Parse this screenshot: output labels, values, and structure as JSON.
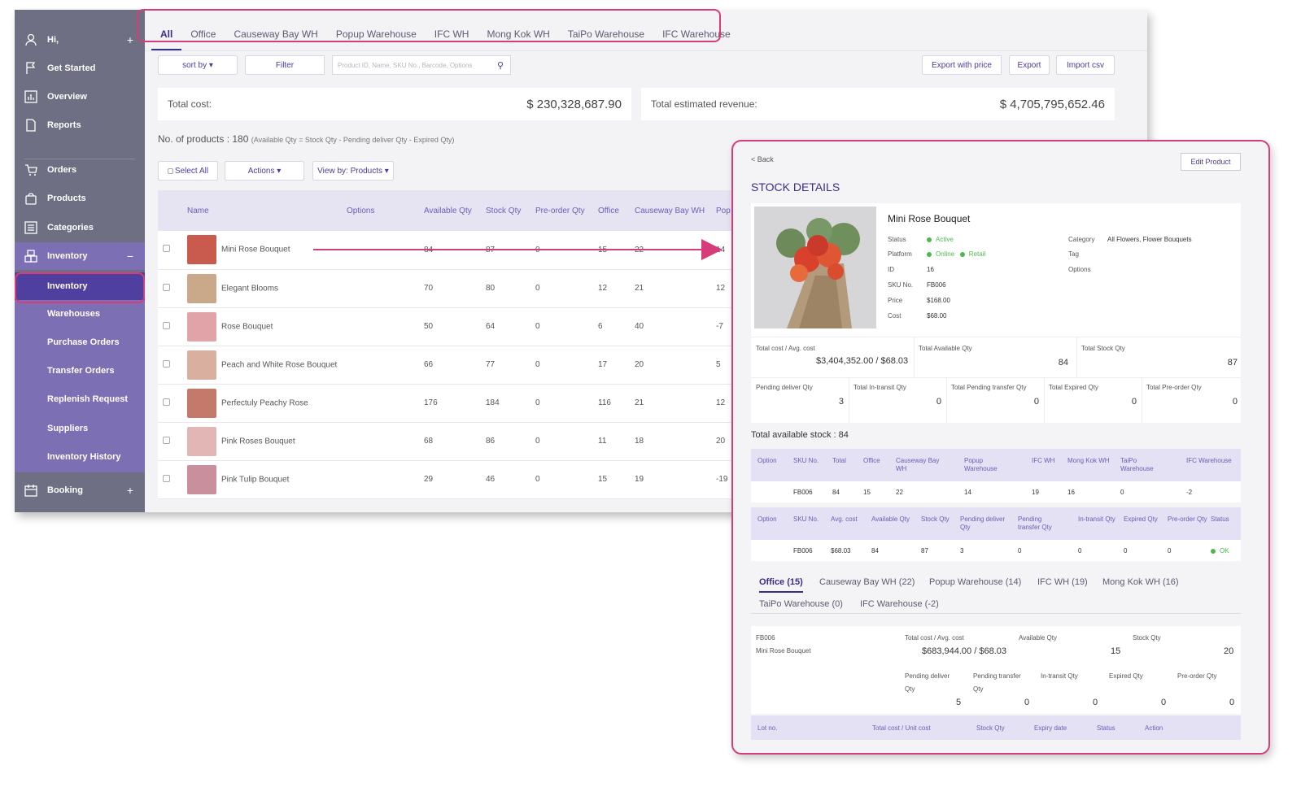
{
  "sidebar": {
    "items": [
      {
        "label": "Hi,",
        "icon": "user-icon",
        "trail": "+"
      },
      {
        "label": "Get Started",
        "icon": "flag-icon"
      },
      {
        "label": "Overview",
        "icon": "chart-icon"
      },
      {
        "label": "Reports",
        "icon": "document-icon"
      },
      {
        "label": "Orders",
        "icon": "cart-icon"
      },
      {
        "label": "Products",
        "icon": "bag-icon"
      },
      {
        "label": "Categories",
        "icon": "list-icon"
      },
      {
        "label": "Inventory",
        "icon": "boxes-icon",
        "trail": "−"
      }
    ],
    "sub_items": [
      "Inventory",
      "Warehouses",
      "Purchase Orders",
      "Transfer Orders",
      "Replenish Request",
      "Suppliers",
      "Inventory History"
    ],
    "booking": {
      "label": "Booking",
      "icon": "calendar-icon",
      "trail": "+"
    }
  },
  "tabs": [
    "All",
    "Office",
    "Causeway Bay WH",
    "Popup Warehouse",
    "IFC WH",
    "Mong Kok WH",
    "TaiPo Warehouse",
    "IFC Warehouse"
  ],
  "toolbar": {
    "sort_label": "sort by ▾",
    "filter_label": "Filter",
    "search_placeholder": "Product ID, Name, SKU No., Barcode, Options",
    "export_price_label": "Export with price",
    "export_label": "Export",
    "import_label": "Import csv"
  },
  "summary": {
    "total_cost_label": "Total cost:",
    "total_cost_value": "$ 230,328,687.90",
    "revenue_label": "Total estimated revenue:",
    "revenue_value": "$ 4,705,795,652.46"
  },
  "count": {
    "label": "No. of products : 180",
    "note": "(Available Qty = Stock Qty - Pending deliver Qty - Expired Qty)"
  },
  "actions": {
    "select_all": "Select All",
    "actions": "Actions ▾",
    "view_by": "View by: Products ▾"
  },
  "table": {
    "headers": [
      "Name",
      "Options",
      "Available Qty",
      "Stock Qty",
      "Pre-order Qty",
      "Office",
      "Causeway Bay WH",
      "Pop"
    ],
    "rows": [
      {
        "name": "Mini Rose Bouquet",
        "available": "84",
        "stock": "87",
        "preorder": "0",
        "office": "15",
        "cb": "22",
        "pop": "14",
        "thumb": "#c95a4e"
      },
      {
        "name": "Elegant Blooms",
        "available": "70",
        "stock": "80",
        "preorder": "0",
        "office": "12",
        "cb": "21",
        "pop": "12",
        "thumb": "#c9a98a"
      },
      {
        "name": "Rose Bouquet",
        "available": "50",
        "stock": "64",
        "preorder": "0",
        "office": "6",
        "cb": "40",
        "pop": "-7",
        "thumb": "#e0a4a8"
      },
      {
        "name": "Peach and White Rose Bouquet",
        "available": "66",
        "stock": "77",
        "preorder": "0",
        "office": "17",
        "cb": "20",
        "pop": "5",
        "thumb": "#d9b0a0"
      },
      {
        "name": "Perfectuly Peachy Rose",
        "available": "176",
        "stock": "184",
        "preorder": "0",
        "office": "116",
        "cb": "21",
        "pop": "12",
        "thumb": "#c47a6a"
      },
      {
        "name": "Pink Roses Bouquet",
        "available": "68",
        "stock": "86",
        "preorder": "0",
        "office": "11",
        "cb": "18",
        "pop": "20",
        "thumb": "#e3b6b6"
      },
      {
        "name": "Pink Tulip Bouquet",
        "available": "29",
        "stock": "46",
        "preorder": "0",
        "office": "15",
        "cb": "19",
        "pop": "-19",
        "thumb": "#c98f9c"
      }
    ]
  },
  "panel": {
    "back": "< Back",
    "edit": "Edit Product",
    "title": "STOCK DETAILS",
    "product_name": "Mini Rose Bouquet",
    "labels": {
      "status": "Status",
      "platform": "Platform",
      "id": "ID",
      "sku": "SKU No.",
      "price": "Price",
      "cost": "Cost",
      "category": "Category",
      "tag": "Tag",
      "options": "Options"
    },
    "values": {
      "status": "Active",
      "platform_online": "Online",
      "platform_retail": "Retail",
      "id": "16",
      "sku": "FB006",
      "price": "$168.00",
      "cost": "$68.00",
      "category": "All Flowers, Flower Bouquets"
    },
    "stats": {
      "total_cost_label": "Total cost / Avg. cost",
      "total_cost_value": "$3,404,352.00 / $68.03",
      "available_label": "Total Available Qty",
      "available_value": "84",
      "stock_label": "Total Stock Qty",
      "stock_value": "87",
      "pending_label": "Pending deliver Qty",
      "pending_value": "3",
      "intransit_label": "Total In-transit Qty",
      "intransit_value": "0",
      "transfer_label": "Total Pending transfer Qty",
      "transfer_value": "0",
      "expired_label": "Total Expired Qty",
      "expired_value": "0",
      "preorder_label": "Total Pre-order Qty",
      "preorder_value": "0"
    },
    "avail_line": "Total available stock : 84",
    "wh_headers": [
      "Option",
      "SKU No.",
      "Total",
      "Office",
      "Causeway Bay WH",
      "Popup Warehouse",
      "IFC WH",
      "Mong Kok WH",
      "TaiPo Warehouse",
      "IFC Warehouse"
    ],
    "wh_row": [
      "",
      "FB006",
      "84",
      "15",
      "22",
      "14",
      "19",
      "16",
      "0",
      "-2"
    ],
    "cost_headers": [
      "Option",
      "SKU No.",
      "Avg. cost",
      "Available Qty",
      "Stock Qty",
      "Pending deliver Qty",
      "Pending transfer Qty",
      "In-transit Qty",
      "Expired Qty",
      "Pre-order Qty",
      "Status"
    ],
    "cost_row": [
      "",
      "FB006",
      "$68.03",
      "84",
      "87",
      "3",
      "0",
      "0",
      "0",
      "0",
      "OK"
    ],
    "wh_tabs": [
      "Office (15)",
      "Causeway Bay WH (22)",
      "Popup Warehouse (14)",
      "IFC WH (19)",
      "Mong Kok WH (16)",
      "TaiPo Warehouse (0)",
      "IFC Warehouse (-2)"
    ],
    "office": {
      "sku": "FB006",
      "name": "Mini Rose Bouquet",
      "cost_label": "Total cost / Avg. cost",
      "cost_value": "$683,944.00 / $68.03",
      "available_label": "Available Qty",
      "available_value": "15",
      "stock_label": "Stock Qty",
      "stock_value": "20",
      "pending_label_1": "Pending deliver",
      "pending_label_2": "Qty",
      "pending_value": "5",
      "transfer_label_1": "Pending transfer",
      "transfer_label_2": "Qty",
      "transfer_value": "0",
      "intransit_label": "In-transit Qty",
      "intransit_value": "0",
      "expired_label": "Expired Qty",
      "expired_value": "0",
      "preorder_label": "Pre-order Qty",
      "preorder_value": "0"
    },
    "lot_headers": [
      "Lot no.",
      "Total cost / Unit cost",
      "Stock Qty",
      "Expiry date",
      "Status",
      "Action"
    ]
  },
  "colors": {
    "sidebar": "#6e6f82",
    "accent": "#3a2d8a",
    "highlight": "#d63c7a",
    "ok": "#4db84d"
  }
}
